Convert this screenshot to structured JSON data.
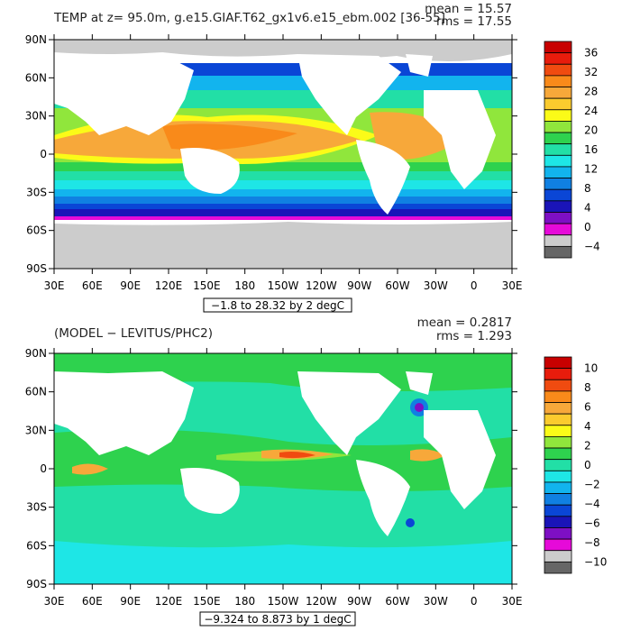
{
  "chart_data": [
    {
      "type": "heatmap",
      "title": "TEMP at z=  95.0m, g.e15.GIAF.T62_gx1v6.e15_ebm.002 [36-55]",
      "stat_mean": "mean = 15.57",
      "stat_rms": "rms = 17.55",
      "range_note": "−1.8 to 28.32 by 2 degC",
      "lat_labels": [
        "90N",
        "60N",
        "30N",
        "0",
        "30S",
        "60S",
        "90S"
      ],
      "lon_labels": [
        "30E",
        "60E",
        "90E",
        "120E",
        "150E",
        "180",
        "150W",
        "120W",
        "90W",
        "60W",
        "30W",
        "0",
        "30E"
      ],
      "colorbar_levels": [
        "36",
        "32",
        "28",
        "24",
        "20",
        "16",
        "12",
        "8",
        "4",
        "0",
        "−4"
      ],
      "colorbar_colors": [
        "#c80000",
        "#e81c0c",
        "#f04b10",
        "#f98a1a",
        "#f7a83a",
        "#fbcb2e",
        "#fbfb18",
        "#90e63c",
        "#2ed24e",
        "#22dfa6",
        "#1ee6e6",
        "#12b4ee",
        "#1080e2",
        "#0a46d6",
        "#1a14b8",
        "#7e0fc4",
        "#e60ad9",
        "#cccccc",
        "#666666"
      ],
      "land_color": "#ffffff",
      "missing_color": "#cccccc"
    },
    {
      "type": "heatmap",
      "title": "(MODEL − LEVITUS/PHC2)",
      "stat_mean": "mean = 0.2817",
      "stat_rms": "rms = 1.293",
      "range_note": "−9.324 to 8.873 by 1 degC",
      "lat_labels": [
        "90N",
        "60N",
        "30N",
        "0",
        "30S",
        "60S",
        "90S"
      ],
      "lon_labels": [
        "30E",
        "60E",
        "90E",
        "120E",
        "150E",
        "180",
        "150W",
        "120W",
        "90W",
        "60W",
        "30W",
        "0",
        "30E"
      ],
      "colorbar_levels": [
        "10",
        "8",
        "6",
        "4",
        "2",
        "0",
        "−2",
        "−4",
        "−6",
        "−8",
        "−10"
      ],
      "colorbar_colors": [
        "#c80000",
        "#e81c0c",
        "#f04b10",
        "#f98a1a",
        "#f7a83a",
        "#fbcb2e",
        "#fbfb18",
        "#90e63c",
        "#2ed24e",
        "#22dfa6",
        "#1ee6e6",
        "#12b4ee",
        "#1080e2",
        "#0a46d6",
        "#1a14b8",
        "#7e0fc4",
        "#e60ad9",
        "#cccccc",
        "#666666"
      ],
      "land_color": "#ffffff",
      "missing_color": "#cccccc"
    }
  ]
}
